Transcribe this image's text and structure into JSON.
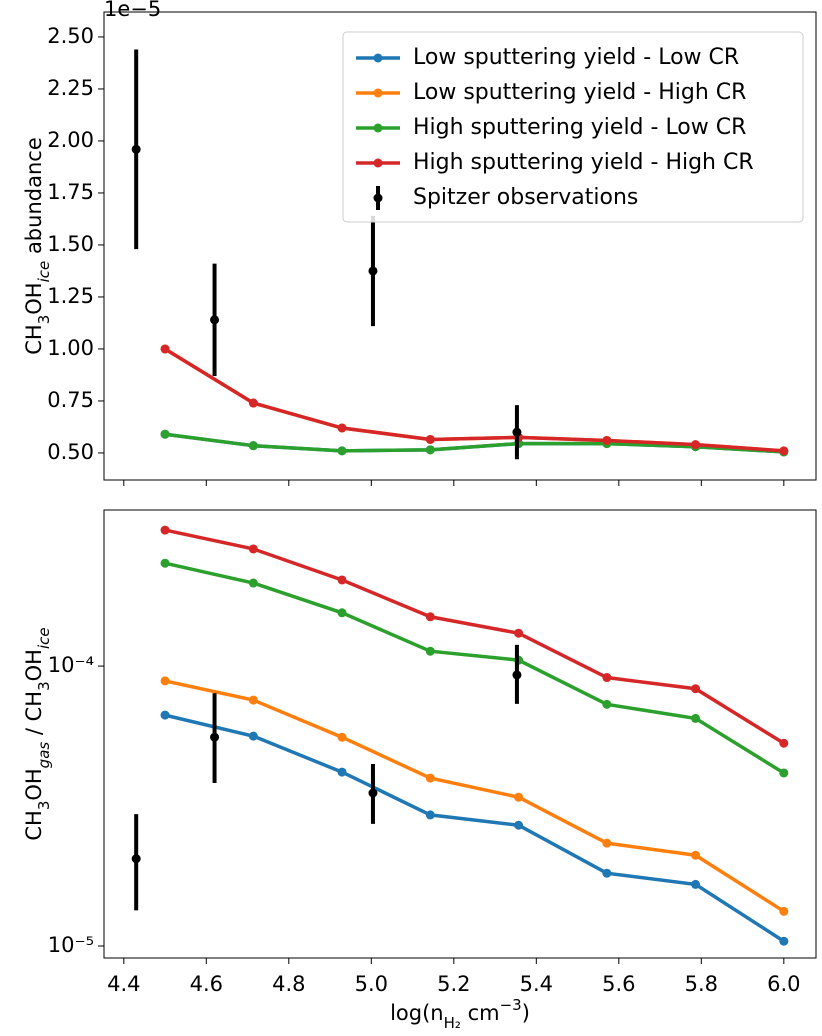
{
  "chart_data": [
    {
      "type": "line",
      "offset_text": "1e−5",
      "ylabel": [
        {
          "text": "CH"
        },
        {
          "text": "3",
          "sub": true
        },
        {
          "text": "OH"
        },
        {
          "text": "ice",
          "sub": true,
          "italic": true
        },
        {
          "text": " abundance"
        }
      ],
      "x": [
        4.5,
        4.714,
        4.929,
        5.143,
        5.357,
        5.571,
        5.786,
        6.0
      ],
      "xlim": [
        4.352,
        6.078
      ],
      "xticks": [
        4.4,
        4.6,
        4.8,
        {
          "value": 5.0,
          "label": "5.0"
        },
        5.2,
        5.4,
        5.6,
        5.8,
        {
          "value": 6.0,
          "label": "6.0"
        }
      ],
      "ylim": [
        0.37,
        2.62
      ],
      "yticks": [
        {
          "value": 0.5,
          "label": "0.50"
        },
        {
          "value": 0.75,
          "label": "0.75"
        },
        {
          "value": 1.0,
          "label": "1.00"
        },
        {
          "value": 1.25,
          "label": "1.25"
        },
        {
          "value": 1.5,
          "label": "1.50"
        },
        {
          "value": 1.75,
          "label": "1.75"
        },
        {
          "value": 2.0,
          "label": "2.00"
        },
        {
          "value": 2.25,
          "label": "2.25"
        },
        {
          "value": 2.5,
          "label": "2.50"
        }
      ],
      "legend": "upper right",
      "series": [
        {
          "name": "Low sputtering yield - Low CR",
          "color": "#1f77b4",
          "values": [
            0.59,
            0.535,
            0.51,
            0.515,
            0.545,
            0.545,
            0.53,
            0.505
          ]
        },
        {
          "name": "Low sputtering yield - High CR",
          "color": "#ff7f0e",
          "values": [
            1.0,
            0.74,
            0.62,
            0.565,
            0.575,
            0.56,
            0.54,
            0.51
          ]
        },
        {
          "name": "High sputtering yield - Low CR",
          "color": "#2ca02c",
          "values": [
            0.59,
            0.535,
            0.51,
            0.515,
            0.545,
            0.545,
            0.53,
            0.505
          ]
        },
        {
          "name": "High sputtering yield - High CR",
          "color": "#d62728",
          "values": [
            1.0,
            0.74,
            0.62,
            0.565,
            0.575,
            0.56,
            0.54,
            0.51
          ]
        }
      ],
      "observations": {
        "name": "Spitzer observations",
        "color": "#000000",
        "x": [
          4.43,
          4.62,
          5.004,
          5.353
        ],
        "values": [
          1.96,
          1.14,
          1.375,
          0.6
        ],
        "yerr_minus": [
          0.48,
          0.27,
          0.265,
          0.13
        ],
        "yerr_plus": [
          0.48,
          0.27,
          0.265,
          0.13
        ]
      }
    },
    {
      "type": "line",
      "log_y": true,
      "ylabel": [
        {
          "text": "CH"
        },
        {
          "text": "3",
          "sub": true
        },
        {
          "text": "OH"
        },
        {
          "text": "gas",
          "sub": true,
          "italic": true
        },
        {
          "text": " / CH"
        },
        {
          "text": "3",
          "sub": true
        },
        {
          "text": "OH"
        },
        {
          "text": "ice",
          "sub": true,
          "italic": true
        }
      ],
      "xlabel": [
        {
          "text": "log(n"
        },
        {
          "text": "H₂",
          "sub": true
        },
        {
          "text": " cm"
        },
        {
          "text": "−3",
          "sup": true
        },
        {
          "text": ")"
        }
      ],
      "x": [
        4.5,
        4.714,
        4.929,
        5.143,
        5.357,
        5.571,
        5.786,
        6.0
      ],
      "xlim": [
        4.352,
        6.078
      ],
      "xticks": [
        4.4,
        4.6,
        4.8,
        {
          "value": 5.0,
          "label": "5.0"
        },
        5.2,
        5.4,
        5.6,
        5.8,
        {
          "value": 6.0,
          "label": "6.0"
        }
      ],
      "ylim": [
        9.06e-06,
        0.000361
      ],
      "yticks": [
        {
          "value": 1e-05,
          "label": "10⁻⁵"
        },
        {
          "value": 0.0001,
          "label": "10⁻⁴"
        }
      ],
      "series": [
        {
          "color": "#1f77b4",
          "values": [
            6.68e-05,
            5.62e-05,
            4.18e-05,
            2.94e-05,
            2.7e-05,
            1.82e-05,
            1.66e-05,
            1.04e-05
          ]
        },
        {
          "color": "#ff7f0e",
          "values": [
            8.85e-05,
            7.56e-05,
            5.57e-05,
            3.98e-05,
            3.4e-05,
            2.33e-05,
            2.11e-05,
            1.33e-05
          ]
        },
        {
          "color": "#2ca02c",
          "values": [
            0.000233,
            0.000198,
            0.000155,
            0.000113,
            0.000105,
            7.3e-05,
            6.5e-05,
            4.15e-05
          ]
        },
        {
          "color": "#d62728",
          "values": [
            0.000306,
            0.000262,
            0.000203,
            0.00015,
            0.000131,
            9.1e-05,
            8.3e-05,
            5.3e-05
          ]
        }
      ],
      "observations": {
        "color": "#000000",
        "x": [
          4.43,
          4.62,
          5.004,
          5.353
        ],
        "values": [
          2.05e-05,
          5.57e-05,
          3.52e-05,
          9.3e-05
        ],
        "yerr_minus": [
          7.1e-06,
          1.75e-05,
          7.9e-06,
          1.97e-05
        ],
        "yerr_plus": [
          9.1e-06,
          2.43e-05,
          9.5e-06,
          2.6e-05
        ]
      }
    }
  ]
}
